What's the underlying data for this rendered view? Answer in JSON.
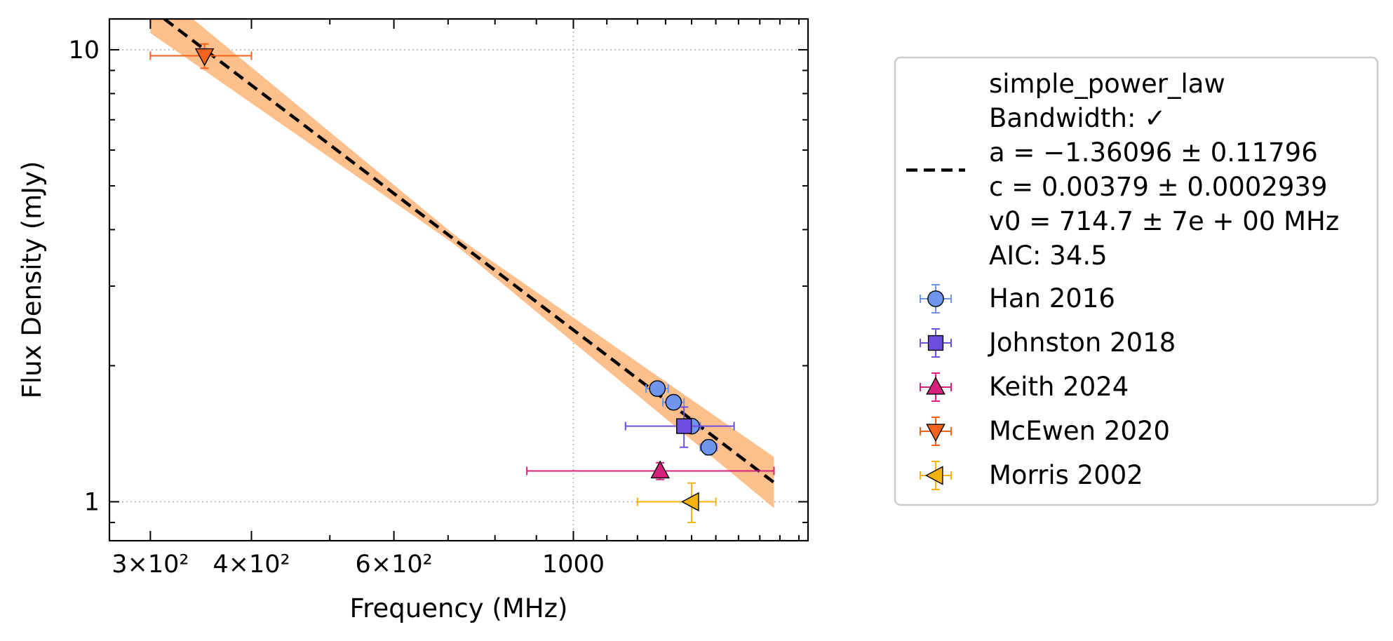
{
  "chart_data": {
    "type": "scatter",
    "xlabel": "Frequency (MHz)",
    "ylabel": "Flux Density (mJy)",
    "xscale": "log",
    "yscale": "log",
    "xlim": [
      267,
      1950
    ],
    "ylim": [
      0.82,
      11.7
    ],
    "x_ticks": [
      {
        "value": 300,
        "label": "3×10²"
      },
      {
        "value": 400,
        "label": "4×10²"
      },
      {
        "value": 600,
        "label": "6×10²"
      },
      {
        "value": 1000,
        "label": "1000"
      }
    ],
    "y_ticks": [
      {
        "value": 1,
        "label": "1"
      },
      {
        "value": 10,
        "label": "10"
      }
    ],
    "grid": true,
    "legend_position": "outside-right",
    "model": {
      "name": "simple_power_law",
      "legend_lines": [
        "simple_power_law",
        "Bandwidth: ✓",
        "a = −1.36096 ± 0.11796",
        "c = 0.00379 ± 0.0002939",
        "v0 = 714.7 ± 7e + 00 MHz",
        "AIC: 34.5"
      ],
      "a": -1.36096,
      "a_err": 0.11796,
      "c": 0.00379,
      "c_err": 0.0002939,
      "v0": 714.7,
      "x_range": [
        300,
        1770
      ],
      "line_color": "#000000",
      "band_color": "#fdbf8b"
    },
    "series": [
      {
        "name": "Han 2016",
        "marker": "circle",
        "color": "#6f95ee",
        "points": [
          {
            "x": 1270,
            "y": 1.78,
            "xerr": 40,
            "yerr": 0.06
          },
          {
            "x": 1330,
            "y": 1.66,
            "xerr": 40,
            "yerr": 0.06
          },
          {
            "x": 1400,
            "y": 1.47,
            "xerr": 35,
            "yerr": 0.05
          },
          {
            "x": 1470,
            "y": 1.32,
            "xerr": 35,
            "yerr": 0.05
          }
        ]
      },
      {
        "name": "Johnston 2018",
        "marker": "square",
        "color": "#6e4ee0",
        "points": [
          {
            "x": 1370,
            "y": 1.47,
            "xerr": 210,
            "yerr": 0.15
          }
        ]
      },
      {
        "name": "Keith 2024",
        "marker": "triangle-up",
        "color": "#d6207c",
        "points": [
          {
            "x": 1280,
            "y": 1.17,
            "xerr_low": 404,
            "xerr_high": 490,
            "yerr": 0.05
          }
        ]
      },
      {
        "name": "McEwen 2020",
        "marker": "triangle-down",
        "color": "#f5621a",
        "points": [
          {
            "x": 350,
            "y": 9.7,
            "xerr": 50,
            "yerr": 0.6
          }
        ]
      },
      {
        "name": "Morris 2002",
        "marker": "triangle-left",
        "color": "#f4b20a",
        "points": [
          {
            "x": 1400,
            "y": 1.0,
            "xerr_low": 200,
            "xerr_high": 100,
            "yerr": 0.1
          }
        ]
      }
    ]
  }
}
